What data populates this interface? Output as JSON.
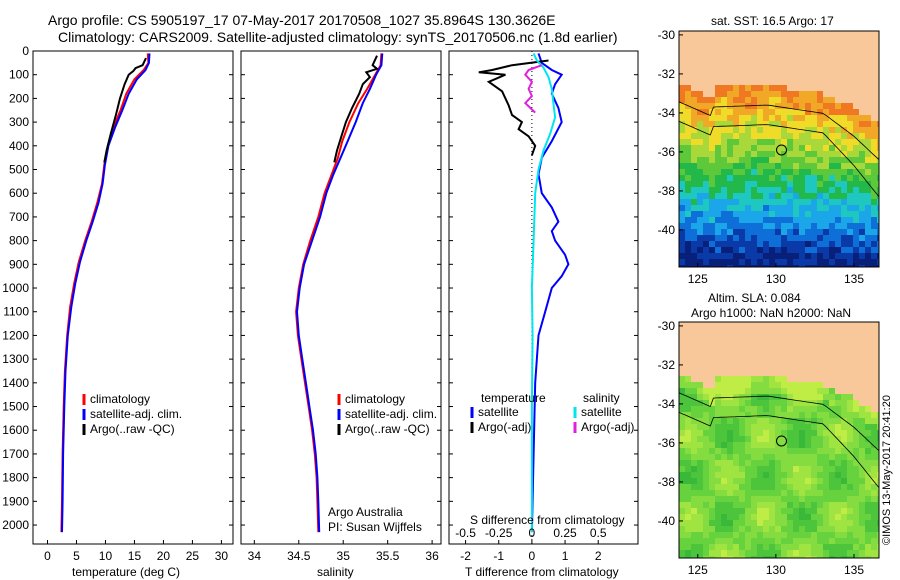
{
  "header": {
    "line1": "Argo profile: CS 5905197_17 07-May-2017 20170508_1027 35.8964S 130.3626E",
    "line2": "Climatology: CARS2009. Satellite-adjusted climatology: synTS_20170506.nc (1.8d earlier)"
  },
  "colors": {
    "climatology": "#ff0000",
    "satellite": "#0000ff",
    "argo": "#000000",
    "sal_satellite": "#00e5ee",
    "sal_argo": "#e020e0",
    "land": "#f9c89a"
  },
  "chart_data": [
    {
      "type": "line",
      "id": "temperature",
      "xlabel": "temperature (deg C)",
      "ylabel": "",
      "xlim": [
        -2.5,
        32
      ],
      "ylim": [
        2080,
        0
      ],
      "x_ticks": [
        0,
        5,
        10,
        15,
        20,
        25,
        30
      ],
      "y_ticks": [
        0,
        100,
        200,
        300,
        400,
        500,
        600,
        700,
        800,
        900,
        1000,
        1100,
        1200,
        1300,
        1400,
        1500,
        1600,
        1700,
        1800,
        1900,
        2000
      ],
      "legend": {
        "position": "lower-right",
        "entries": [
          "climatology",
          "satellite-adj. clim.",
          "Argo(..raw -QC)"
        ]
      },
      "series": [
        {
          "name": "climatology",
          "color": "#ff0000",
          "points": [
            [
              17.3,
              10
            ],
            [
              17.4,
              50
            ],
            [
              16.6,
              80
            ],
            [
              15.0,
              120
            ],
            [
              13.6,
              180
            ],
            [
              12.6,
              250
            ],
            [
              11.4,
              320
            ],
            [
              10.4,
              400
            ],
            [
              9.8,
              480
            ],
            [
              9.4,
              560
            ],
            [
              8.6,
              640
            ],
            [
              7.6,
              720
            ],
            [
              6.5,
              800
            ],
            [
              5.4,
              890
            ],
            [
              4.6,
              980
            ],
            [
              3.9,
              1080
            ],
            [
              3.4,
              1200
            ],
            [
              3.0,
              1350
            ],
            [
              2.8,
              1500
            ],
            [
              2.6,
              1700
            ],
            [
              2.5,
              1900
            ],
            [
              2.4,
              2030
            ]
          ]
        },
        {
          "name": "satellite-adj. clim.",
          "color": "#0000ff",
          "points": [
            [
              17.6,
              10
            ],
            [
              17.5,
              50
            ],
            [
              16.9,
              80
            ],
            [
              15.4,
              120
            ],
            [
              14.0,
              180
            ],
            [
              12.9,
              250
            ],
            [
              11.7,
              320
            ],
            [
              10.5,
              400
            ],
            [
              9.9,
              480
            ],
            [
              9.5,
              560
            ],
            [
              8.8,
              640
            ],
            [
              7.8,
              720
            ],
            [
              6.7,
              800
            ],
            [
              5.6,
              890
            ],
            [
              4.8,
              980
            ],
            [
              4.1,
              1080
            ],
            [
              3.5,
              1200
            ],
            [
              3.1,
              1350
            ],
            [
              2.9,
              1500
            ],
            [
              2.7,
              1700
            ],
            [
              2.6,
              1900
            ],
            [
              2.5,
              2030
            ]
          ]
        },
        {
          "name": "Argo(..raw -QC)",
          "color": "#000000",
          "points": [
            [
              17.0,
              30
            ],
            [
              16.4,
              60
            ],
            [
              15.2,
              72
            ],
            [
              14.8,
              85
            ],
            [
              14.0,
              100
            ],
            [
              13.3,
              140
            ],
            [
              12.5,
              200
            ],
            [
              11.8,
              270
            ],
            [
              10.9,
              350
            ],
            [
              10.2,
              420
            ],
            [
              9.8,
              470
            ]
          ]
        }
      ]
    },
    {
      "type": "line",
      "id": "salinity",
      "xlabel": "salinity",
      "ylabel": "",
      "xlim": [
        33.85,
        36.1
      ],
      "ylim": [
        2080,
        0
      ],
      "x_ticks": [
        34,
        34.5,
        35,
        35.5,
        36
      ],
      "legend": {
        "position": "lower-right",
        "entries": [
          "climatology",
          "satellite-adj. clim.",
          "Argo(..raw -QC)"
        ]
      },
      "annotations": [
        "Argo Australia",
        "PI: Susan Wijffels"
      ],
      "series": [
        {
          "name": "climatology",
          "color": "#ff0000",
          "points": [
            [
              35.43,
              10
            ],
            [
              35.42,
              60
            ],
            [
              35.36,
              100
            ],
            [
              35.27,
              160
            ],
            [
              35.17,
              220
            ],
            [
              35.07,
              300
            ],
            [
              34.99,
              380
            ],
            [
              34.94,
              450
            ],
            [
              34.87,
              520
            ],
            [
              34.79,
              600
            ],
            [
              34.72,
              700
            ],
            [
              34.63,
              800
            ],
            [
              34.55,
              900
            ],
            [
              34.5,
              1000
            ],
            [
              34.47,
              1100
            ],
            [
              34.49,
              1200
            ],
            [
              34.53,
              1300
            ],
            [
              34.57,
              1400
            ],
            [
              34.61,
              1500
            ],
            [
              34.65,
              1600
            ],
            [
              34.68,
              1700
            ],
            [
              34.7,
              1800
            ],
            [
              34.71,
              1900
            ],
            [
              34.72,
              2030
            ]
          ]
        },
        {
          "name": "satellite-adj. clim.",
          "color": "#0000ff",
          "points": [
            [
              35.44,
              10
            ],
            [
              35.43,
              60
            ],
            [
              35.37,
              100
            ],
            [
              35.3,
              160
            ],
            [
              35.22,
              220
            ],
            [
              35.14,
              300
            ],
            [
              35.05,
              380
            ],
            [
              34.97,
              450
            ],
            [
              34.89,
              520
            ],
            [
              34.81,
              600
            ],
            [
              34.74,
              700
            ],
            [
              34.65,
              800
            ],
            [
              34.56,
              900
            ],
            [
              34.51,
              1000
            ],
            [
              34.48,
              1100
            ],
            [
              34.5,
              1200
            ],
            [
              34.54,
              1300
            ],
            [
              34.58,
              1400
            ],
            [
              34.62,
              1500
            ],
            [
              34.66,
              1600
            ],
            [
              34.69,
              1700
            ],
            [
              34.71,
              1800
            ],
            [
              34.72,
              1900
            ],
            [
              34.73,
              2030
            ]
          ]
        },
        {
          "name": "Argo(..raw -QC)",
          "color": "#000000",
          "points": [
            [
              35.38,
              20
            ],
            [
              35.33,
              60
            ],
            [
              35.38,
              75
            ],
            [
              35.26,
              90
            ],
            [
              35.3,
              110
            ],
            [
              35.22,
              140
            ],
            [
              35.18,
              180
            ],
            [
              35.1,
              240
            ],
            [
              35.03,
              300
            ],
            [
              34.98,
              360
            ],
            [
              34.93,
              420
            ],
            [
              34.9,
              470
            ]
          ]
        }
      ]
    },
    {
      "type": "line",
      "id": "differences",
      "xlabel": "T difference from climatology",
      "xlabel_top": "S difference from climatology",
      "ylabel": "",
      "xlim": [
        -2.5,
        3.2
      ],
      "ylim": [
        2080,
        0
      ],
      "x_ticks": [
        -2,
        -1,
        0,
        1,
        2
      ],
      "s_ticks": [
        -0.5,
        -0.25,
        0,
        0.25,
        0.5
      ],
      "legend": {
        "position": "upper-middle",
        "headers": [
          "temperature",
          "salinity"
        ],
        "entries": [
          "satellite",
          "Argo(-adj)",
          "satellite",
          "Argo(-adj)"
        ]
      },
      "series": [
        {
          "name": "satellite",
          "color": "#0000ff",
          "points": [
            [
              0.2,
              10
            ],
            [
              0.3,
              50
            ],
            [
              0.6,
              80
            ],
            [
              0.9,
              100
            ],
            [
              0.7,
              140
            ],
            [
              0.6,
              180
            ],
            [
              0.8,
              240
            ],
            [
              0.9,
              300
            ],
            [
              0.6,
              380
            ],
            [
              0.3,
              450
            ],
            [
              0.2,
              520
            ],
            [
              0.3,
              600
            ],
            [
              0.6,
              660
            ],
            [
              0.8,
              720
            ],
            [
              0.6,
              760
            ],
            [
              0.7,
              800
            ],
            [
              1.0,
              860
            ],
            [
              1.1,
              900
            ],
            [
              0.9,
              950
            ],
            [
              0.6,
              1000
            ],
            [
              0.4,
              1100
            ],
            [
              0.2,
              1200
            ],
            [
              0.1,
              1400
            ],
            [
              0.05,
              1700
            ],
            [
              0.0,
              2030
            ]
          ]
        },
        {
          "name": "Argo(-adj)",
          "color": "#000000",
          "points": [
            [
              0.5,
              40
            ],
            [
              -0.6,
              60
            ],
            [
              -1.2,
              80
            ],
            [
              -1.6,
              90
            ],
            [
              -0.8,
              100
            ],
            [
              -1.3,
              130
            ],
            [
              -0.9,
              170
            ],
            [
              -0.7,
              230
            ],
            [
              -0.6,
              270
            ],
            [
              -0.3,
              300
            ],
            [
              -0.4,
              330
            ],
            [
              -0.1,
              360
            ],
            [
              0.1,
              400
            ],
            [
              0.0,
              440
            ]
          ]
        },
        {
          "name": "satellite",
          "color": "#00e5ee",
          "points": [
            [
              0.05,
              10
            ],
            [
              0.15,
              40
            ],
            [
              0.35,
              70
            ],
            [
              0.5,
              110
            ],
            [
              0.6,
              160
            ],
            [
              0.65,
              220
            ],
            [
              0.7,
              280
            ],
            [
              0.55,
              350
            ],
            [
              0.35,
              420
            ],
            [
              0.2,
              500
            ],
            [
              0.1,
              600
            ],
            [
              0.05,
              800
            ],
            [
              0.0,
              1000
            ],
            [
              0.02,
              1200
            ],
            [
              0.0,
              1500
            ],
            [
              0.0,
              1800
            ],
            [
              0.0,
              2030
            ]
          ]
        },
        {
          "name": "Argo(-adj)",
          "color": "#e020e0",
          "points": [
            [
              0.3,
              60
            ],
            [
              -0.1,
              80
            ],
            [
              -0.2,
              100
            ],
            [
              0.0,
              130
            ],
            [
              -0.1,
              160
            ],
            [
              0.0,
              190
            ],
            [
              -0.2,
              220
            ],
            [
              0.1,
              260
            ]
          ]
        }
      ]
    },
    {
      "type": "heatmap",
      "id": "sst_map",
      "title": "sat. SST: 16.5 Argo: 17",
      "x_ticks": [
        125,
        130,
        135
      ],
      "y_ticks": [
        -30,
        -32,
        -34,
        -36,
        -38,
        -40
      ],
      "xlim": [
        123.8,
        136.6
      ],
      "ylim": [
        -41.9,
        -29.8
      ],
      "marker": [
        130.36,
        -35.9
      ]
    },
    {
      "type": "heatmap",
      "id": "sla_map",
      "title_lines": [
        "Altim. SLA: 0.084",
        "Argo h1000: NaN h2000: NaN"
      ],
      "x_ticks": [
        125,
        130,
        135
      ],
      "y_ticks": [
        -30,
        -32,
        -34,
        -36,
        -38,
        -40
      ],
      "xlim": [
        123.8,
        136.6
      ],
      "ylim": [
        -41.9,
        -29.8
      ],
      "marker": [
        130.36,
        -35.9
      ]
    }
  ],
  "side_label": "©IMOS 13-May-2017 20:41:20"
}
